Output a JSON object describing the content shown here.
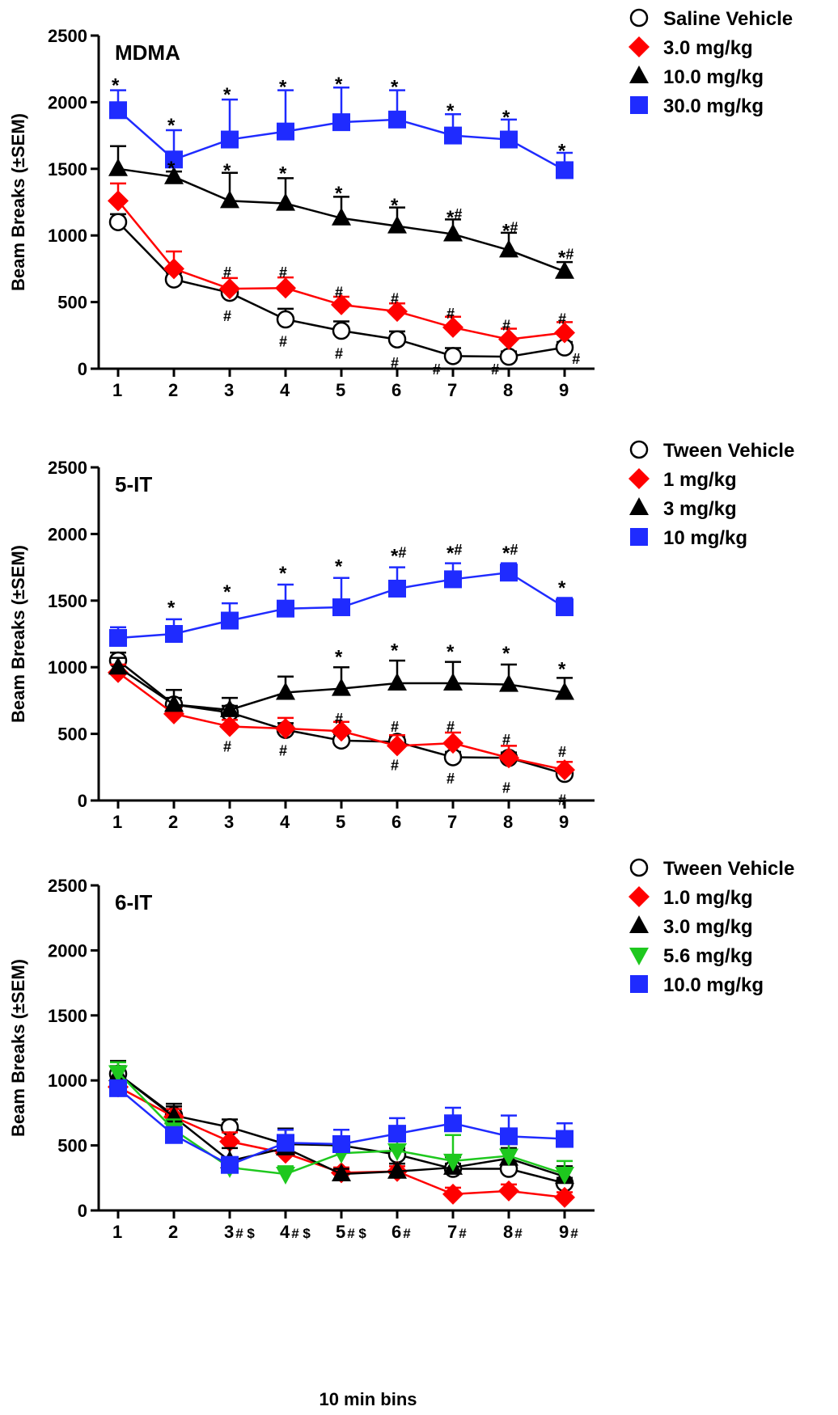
{
  "figure": {
    "xlabel": "10 min bins",
    "colors": {
      "vehicle": "#000000",
      "red": "#ff0000",
      "black": "#000000",
      "green": "#1ec81e",
      "blue": "#1f2bff"
    }
  },
  "chart_data": [
    {
      "type": "line",
      "title": "MDMA",
      "ylabel": "Beam Breaks (±SEM)",
      "xlabel": "",
      "x": [
        1,
        2,
        3,
        4,
        5,
        6,
        7,
        8,
        9
      ],
      "x_tick_labels": [
        "1",
        "2",
        "3",
        "4",
        "5",
        "6",
        "7",
        "8",
        "9"
      ],
      "ylim": [
        0,
        2500
      ],
      "yticks": [
        0,
        500,
        1000,
        1500,
        2000,
        2500
      ],
      "legend": "top-right",
      "series": [
        {
          "name": "Saline Vehicle",
          "marker": "circle-open",
          "color": "#000000",
          "values": [
            1100,
            670,
            570,
            370,
            285,
            220,
            95,
            90,
            160
          ],
          "sem": [
            60,
            50,
            40,
            80,
            70,
            60,
            60,
            40,
            40
          ]
        },
        {
          "name": "3.0 mg/kg",
          "marker": "diamond",
          "color": "#ff0000",
          "values": [
            1260,
            750,
            600,
            605,
            480,
            430,
            310,
            220,
            270
          ],
          "sem": [
            130,
            130,
            80,
            80,
            60,
            60,
            80,
            80,
            80
          ]
        },
        {
          "name": "10.0 mg/kg",
          "marker": "triangle-up",
          "color": "#000000",
          "values": [
            1500,
            1440,
            1260,
            1240,
            1130,
            1070,
            1010,
            890,
            730
          ],
          "sem": [
            170,
            40,
            210,
            190,
            160,
            140,
            110,
            130,
            70
          ]
        },
        {
          "name": "30.0 mg/kg",
          "marker": "square",
          "color": "#1f2bff",
          "values": [
            1940,
            1570,
            1720,
            1780,
            1850,
            1870,
            1750,
            1720,
            1490
          ],
          "sem": [
            150,
            220,
            300,
            310,
            260,
            220,
            160,
            150,
            130
          ]
        }
      ],
      "annotations": [
        {
          "x": 1,
          "y": 2150,
          "text": "*"
        },
        {
          "x": 2,
          "y": 1850,
          "text": "*"
        },
        {
          "x": 3,
          "y": 2080,
          "text": "*"
        },
        {
          "x": 4,
          "y": 2140,
          "text": "*"
        },
        {
          "x": 5,
          "y": 2160,
          "text": "*"
        },
        {
          "x": 6,
          "y": 2140,
          "text": "*"
        },
        {
          "x": 7,
          "y": 1960,
          "text": "*"
        },
        {
          "x": 8,
          "y": 1910,
          "text": "*"
        },
        {
          "x": 9,
          "y": 1660,
          "text": "*"
        },
        {
          "x": 2,
          "y": 1530,
          "text": "*"
        },
        {
          "x": 3,
          "y": 1510,
          "text": "*"
        },
        {
          "x": 4,
          "y": 1490,
          "text": "*"
        },
        {
          "x": 5,
          "y": 1340,
          "text": "*"
        },
        {
          "x": 6,
          "y": 1250,
          "text": "*"
        },
        {
          "x": 7,
          "y": 1160,
          "text": "*#"
        },
        {
          "x": 8,
          "y": 1060,
          "text": "*#"
        },
        {
          "x": 9,
          "y": 860,
          "text": "*#"
        },
        {
          "x": 3,
          "y": 760,
          "text": "#"
        },
        {
          "x": 4,
          "y": 760,
          "text": "#"
        },
        {
          "x": 5,
          "y": 610,
          "text": "#"
        },
        {
          "x": 6,
          "y": 560,
          "text": "#"
        },
        {
          "x": 7,
          "y": 450,
          "text": "#"
        },
        {
          "x": 8,
          "y": 360,
          "text": "#"
        },
        {
          "x": 9,
          "y": 410,
          "text": "#"
        },
        {
          "x": 3,
          "y": 430,
          "text": "#"
        },
        {
          "x": 4,
          "y": 240,
          "text": "#"
        },
        {
          "x": 5,
          "y": 150,
          "text": "#"
        },
        {
          "x": 6,
          "y": 80,
          "text": "#"
        },
        {
          "x": 6.75,
          "y": 30,
          "text": "#"
        },
        {
          "x": 7.8,
          "y": 30,
          "text": "#"
        },
        {
          "x": 9.25,
          "y": 110,
          "text": "#"
        }
      ]
    },
    {
      "type": "line",
      "title": "5-IT",
      "ylabel": "Beam Breaks (±SEM)",
      "xlabel": "",
      "x": [
        1,
        2,
        3,
        4,
        5,
        6,
        7,
        8,
        9
      ],
      "x_tick_labels": [
        "1",
        "2",
        "3",
        "4",
        "5",
        "6",
        "7",
        "8",
        "9"
      ],
      "ylim": [
        0,
        2500
      ],
      "yticks": [
        0,
        500,
        1000,
        1500,
        2000,
        2500
      ],
      "legend": "top-right",
      "series": [
        {
          "name": "Tween Vehicle",
          "marker": "circle-open",
          "color": "#000000",
          "values": [
            1050,
            720,
            660,
            530,
            450,
            440,
            325,
            320,
            200
          ],
          "sem": [
            60,
            50,
            50,
            50,
            50,
            40,
            40,
            40,
            40
          ]
        },
        {
          "name": "1 mg/kg",
          "marker": "diamond",
          "color": "#ff0000",
          "values": [
            960,
            650,
            555,
            540,
            520,
            410,
            430,
            320,
            230
          ],
          "sem": [
            60,
            40,
            50,
            80,
            70,
            80,
            80,
            90,
            60
          ]
        },
        {
          "name": "3 mg/kg",
          "marker": "triangle-up",
          "color": "#000000",
          "values": [
            1000,
            720,
            680,
            810,
            840,
            880,
            880,
            870,
            810
          ],
          "sem": [
            70,
            110,
            90,
            120,
            160,
            170,
            160,
            150,
            110
          ]
        },
        {
          "name": "10 mg/kg",
          "marker": "square",
          "color": "#1f2bff",
          "values": [
            1220,
            1250,
            1350,
            1440,
            1450,
            1590,
            1660,
            1710,
            1450
          ],
          "sem": [
            80,
            110,
            130,
            180,
            220,
            160,
            120,
            70,
            70
          ]
        }
      ],
      "annotations": [
        {
          "x": 2,
          "y": 1470,
          "text": "*"
        },
        {
          "x": 3,
          "y": 1590,
          "text": "*"
        },
        {
          "x": 4,
          "y": 1730,
          "text": "*"
        },
        {
          "x": 5,
          "y": 1780,
          "text": "*"
        },
        {
          "x": 6,
          "y": 1860,
          "text": "*#"
        },
        {
          "x": 7,
          "y": 1880,
          "text": "*#"
        },
        {
          "x": 8,
          "y": 1880,
          "text": "*#"
        },
        {
          "x": 9,
          "y": 1620,
          "text": "*"
        },
        {
          "x": 5,
          "y": 1100,
          "text": "*"
        },
        {
          "x": 6,
          "y": 1150,
          "text": "*"
        },
        {
          "x": 7,
          "y": 1140,
          "text": "*"
        },
        {
          "x": 8,
          "y": 1130,
          "text": "*"
        },
        {
          "x": 9,
          "y": 1010,
          "text": "*"
        },
        {
          "x": 5,
          "y": 650,
          "text": "#"
        },
        {
          "x": 6,
          "y": 590,
          "text": "#"
        },
        {
          "x": 7,
          "y": 590,
          "text": "#"
        },
        {
          "x": 8,
          "y": 490,
          "text": "#"
        },
        {
          "x": 9,
          "y": 400,
          "text": "#"
        },
        {
          "x": 3,
          "y": 440,
          "text": "#"
        },
        {
          "x": 4,
          "y": 410,
          "text": "#"
        },
        {
          "x": 6,
          "y": 300,
          "text": "#"
        },
        {
          "x": 7,
          "y": 200,
          "text": "#"
        },
        {
          "x": 8,
          "y": 130,
          "text": "#"
        },
        {
          "x": 9,
          "y": 40,
          "text": "#"
        }
      ]
    },
    {
      "type": "line",
      "title": "6-IT",
      "ylabel": "Beam Breaks (±SEM)",
      "xlabel": "10 min bins",
      "x": [
        1,
        2,
        3,
        4,
        5,
        6,
        7,
        8,
        9
      ],
      "x_tick_labels": [
        "1",
        "2",
        "3# $",
        "4# $",
        "5# $",
        "6#",
        "7#",
        "8#",
        "9#"
      ],
      "ylim": [
        0,
        2500
      ],
      "yticks": [
        0,
        500,
        1000,
        1500,
        2000,
        2500
      ],
      "legend": "top-right",
      "series": [
        {
          "name": "Tween Vehicle",
          "marker": "circle-open",
          "color": "#000000",
          "values": [
            1050,
            730,
            640,
            510,
            500,
            430,
            320,
            320,
            210
          ],
          "sem": [
            60,
            70,
            60,
            60,
            40,
            50,
            40,
            40,
            40
          ]
        },
        {
          "name": "1.0 mg/kg",
          "marker": "diamond",
          "color": "#ff0000",
          "values": [
            950,
            720,
            530,
            440,
            290,
            300,
            125,
            150,
            100
          ],
          "sem": [
            60,
            60,
            70,
            70,
            40,
            40,
            50,
            50,
            40
          ]
        },
        {
          "name": "3.0 mg/kg",
          "marker": "triangle-up",
          "color": "#000000",
          "values": [
            1050,
            720,
            380,
            480,
            280,
            300,
            330,
            400,
            260
          ],
          "sem": [
            100,
            100,
            100,
            150,
            40,
            60,
            80,
            80,
            80
          ]
        },
        {
          "name": "5.6 mg/kg",
          "marker": "triangle-down",
          "color": "#1ec81e",
          "values": [
            1060,
            620,
            330,
            280,
            440,
            460,
            380,
            420,
            280
          ],
          "sem": [
            80,
            80,
            60,
            60,
            100,
            100,
            200,
            120,
            100
          ]
        },
        {
          "name": "10.0 mg/kg",
          "marker": "square",
          "color": "#1f2bff",
          "values": [
            940,
            580,
            350,
            520,
            510,
            590,
            670,
            570,
            550
          ],
          "sem": [
            60,
            50,
            60,
            100,
            110,
            120,
            120,
            160,
            120
          ]
        }
      ],
      "annotations": []
    }
  ]
}
